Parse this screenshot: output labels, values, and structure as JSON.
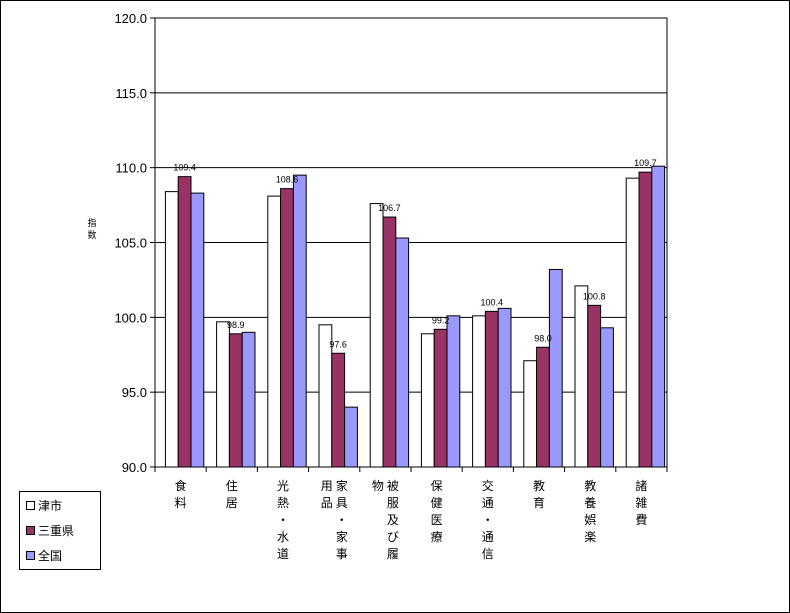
{
  "chart_data": {
    "type": "bar",
    "ylabel": "指数",
    "ylim": [
      90.0,
      120.0
    ],
    "yticks": [
      "90.0",
      "95.0",
      "100.0",
      "105.0",
      "110.0",
      "115.0",
      "120.0"
    ],
    "legend_position": "bottom-left",
    "grid": true,
    "categories": [
      "食料",
      "住居",
      "光熱・水道",
      "家具・家事用品",
      "被服及び履物",
      "保健医療",
      "交通・通信",
      "教育",
      "教養娯楽",
      "諸雑費"
    ],
    "series": [
      {
        "name": "津市",
        "color": "#ffffff",
        "values": [
          108.4,
          99.7,
          108.1,
          99.5,
          107.6,
          98.9,
          100.1,
          97.1,
          102.1,
          109.3
        ]
      },
      {
        "name": "三重県",
        "color": "#993366",
        "values": [
          109.4,
          98.9,
          108.6,
          97.6,
          106.7,
          99.2,
          100.4,
          98.0,
          100.8,
          109.7
        ],
        "data_labels": [
          "109.4",
          "98.9",
          "108.6",
          "97.6",
          "106.7",
          "99.2",
          "100.4",
          "98.0",
          "100.8",
          "109.7"
        ]
      },
      {
        "name": "全国",
        "color": "#9999ff",
        "values": [
          108.3,
          99.0,
          109.5,
          94.0,
          105.3,
          100.1,
          100.6,
          103.2,
          99.3,
          110.1
        ]
      }
    ]
  }
}
